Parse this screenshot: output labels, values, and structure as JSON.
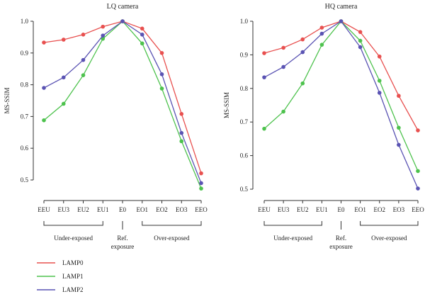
{
  "chart_data": [
    {
      "type": "line",
      "title": "LQ camera",
      "ylabel": "MS-SSIM",
      "xlabel": "",
      "categories": [
        "EEU",
        "EU3",
        "EU2",
        "EU1",
        "E0",
        "EO1",
        "EO2",
        "EO3",
        "EEO"
      ],
      "ylim": [
        0.47,
        1.01
      ],
      "yticks": [
        "1.0",
        "0.9",
        "0.8",
        "0.7",
        "0.6",
        "0.5"
      ],
      "grid": false,
      "series": [
        {
          "name": "LAMP0",
          "color": "#e8504f",
          "values": [
            0.933,
            0.942,
            0.958,
            0.983,
            1.0,
            0.977,
            0.9,
            0.708,
            0.521
          ]
        },
        {
          "name": "LAMP1",
          "color": "#4dc24d",
          "values": [
            0.688,
            0.74,
            0.83,
            0.945,
            1.0,
            0.93,
            0.788,
            0.622,
            0.473
          ]
        },
        {
          "name": "LAMP2",
          "color": "#5a53b3",
          "values": [
            0.79,
            0.823,
            0.878,
            0.955,
            1.0,
            0.958,
            0.833,
            0.648,
            0.49
          ]
        }
      ]
    },
    {
      "type": "line",
      "title": "HQ camera",
      "ylabel": "MS-SSIM",
      "xlabel": "",
      "categories": [
        "EEU",
        "EU3",
        "EU2",
        "EU1",
        "E0",
        "EO1",
        "EO2",
        "EO3",
        "EEO"
      ],
      "ylim": [
        0.48,
        1.01
      ],
      "yticks": [
        "1.0",
        "0.9",
        "0.8",
        "0.7",
        "0.6",
        "0.5"
      ],
      "grid": false,
      "series": [
        {
          "name": "LAMP0",
          "color": "#e8504f",
          "values": [
            0.905,
            0.921,
            0.946,
            0.981,
            1.0,
            0.968,
            0.895,
            0.778,
            0.675
          ]
        },
        {
          "name": "LAMP1",
          "color": "#4dc24d",
          "values": [
            0.68,
            0.731,
            0.815,
            0.93,
            1.0,
            0.942,
            0.823,
            0.683,
            0.554
          ]
        },
        {
          "name": "LAMP2",
          "color": "#5a53b3",
          "values": [
            0.833,
            0.864,
            0.908,
            0.963,
            1.0,
            0.923,
            0.787,
            0.632,
            0.502
          ]
        }
      ]
    }
  ],
  "groups": {
    "under": "Under-exposed",
    "ref_line1": "Ref.",
    "ref_line2": "exposure",
    "over": "Over-exposed"
  },
  "legend": [
    {
      "name": "LAMP0",
      "color": "#e8504f"
    },
    {
      "name": "LAMP1",
      "color": "#4dc24d"
    },
    {
      "name": "LAMP2",
      "color": "#5a53b3"
    }
  ]
}
